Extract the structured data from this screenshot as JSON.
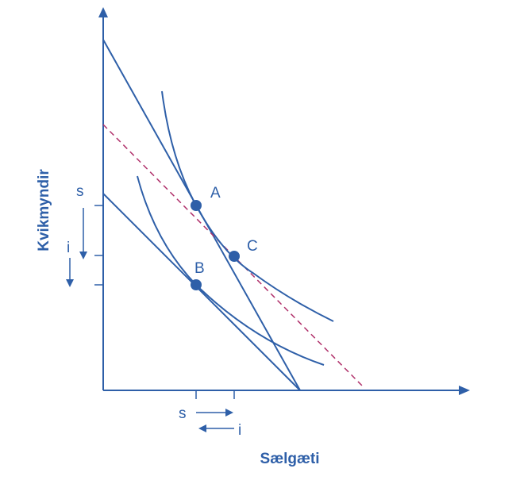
{
  "diagram": {
    "x_axis_label": "Sælgæti",
    "y_axis_label": "Kvikmyndir",
    "points": [
      {
        "id": "A",
        "label": "A"
      },
      {
        "id": "B",
        "label": "B"
      },
      {
        "id": "C",
        "label": "C"
      }
    ],
    "effect_labels": {
      "x_substitution": "s",
      "x_income": "i",
      "y_substitution": "s",
      "y_income": "i"
    },
    "colors": {
      "line": "#2e5fa8",
      "point": "#2e5fa8",
      "dashed_line": "#b0306a",
      "text": "#2e5fa8"
    }
  }
}
